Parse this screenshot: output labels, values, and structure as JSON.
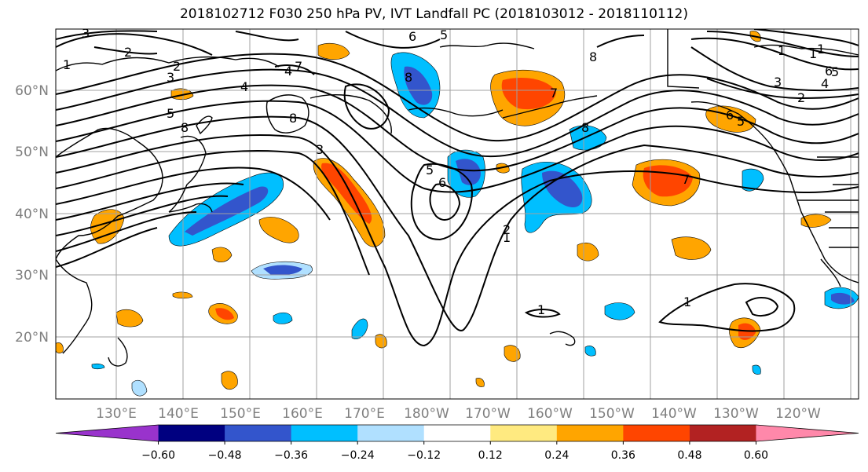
{
  "title": "2018102712 F030 250 hPa PV, IVT Landfall PC (2018103012 - 2018110112)",
  "lat_labels": [
    "60°N",
    "50°N",
    "40°N",
    "30°N",
    "20°N"
  ],
  "lon_labels": [
    "130°E",
    "140°E",
    "150°E",
    "160°E",
    "170°E",
    "180°W",
    "170°W",
    "160°W",
    "150°W",
    "140°W",
    "130°W",
    "120°W"
  ],
  "colorbar": {
    "ticks": [
      "−0.60",
      "−0.48",
      "−0.36",
      "−0.24",
      "−0.12",
      "0.12",
      "0.24",
      "0.36",
      "0.48",
      "0.60"
    ],
    "colors": [
      "#9933cc",
      "#000080",
      "#3355cc",
      "#00bfff",
      "#b0e0ff",
      "#ffffff",
      "#ffea80",
      "#ffa500",
      "#ff4500",
      "#b22222",
      "#ff88aa"
    ]
  },
  "contour_labels": [
    "3",
    "2",
    "2",
    "3",
    "4",
    "5",
    "8",
    "4",
    "7",
    "8",
    "3",
    "5",
    "6",
    "6",
    "5",
    "8",
    "7",
    "8",
    "8",
    "7",
    "6",
    "5",
    "1",
    "1",
    "1",
    "2",
    "3",
    "4",
    "5",
    "6",
    "1",
    "1",
    "1",
    "2",
    "1"
  ]
}
